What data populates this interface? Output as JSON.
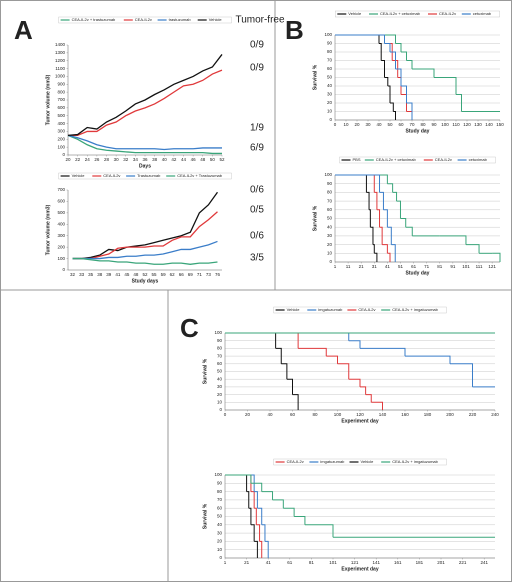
{
  "chart_data": [
    {
      "type": "line",
      "panel": "A",
      "ylabel": "Tumor volume (mm3)",
      "xlabel": "Days",
      "x": [
        20,
        22,
        24,
        26,
        28,
        30,
        32,
        34,
        36,
        38,
        40,
        42,
        44,
        46,
        48,
        50,
        52
      ],
      "xlim": [
        20,
        52
      ],
      "xticks": [
        20,
        22,
        24,
        26,
        28,
        30,
        32,
        34,
        36,
        38,
        40,
        42,
        44,
        46,
        48,
        50,
        52
      ],
      "ylim": [
        0,
        1400
      ],
      "yticks": [
        0,
        100,
        200,
        300,
        400,
        500,
        600,
        700,
        800,
        900,
        1000,
        1100,
        1200,
        1300,
        1400
      ],
      "grid": false,
      "series": [
        {
          "name": "CEA-IL2v + trastuzumab",
          "color": "#3aa57a",
          "values": [
            250,
            200,
            130,
            80,
            60,
            50,
            40,
            30,
            30,
            30,
            30,
            30,
            30,
            30,
            30,
            20,
            20
          ]
        },
        {
          "name": "CEA-IL2v",
          "color": "#e0393b",
          "values": [
            250,
            250,
            300,
            300,
            380,
            420,
            500,
            560,
            600,
            650,
            720,
            800,
            880,
            900,
            950,
            1030,
            1080
          ]
        },
        {
          "name": "trastuzumab",
          "color": "#3a7dc9",
          "values": [
            250,
            220,
            180,
            130,
            100,
            80,
            80,
            80,
            80,
            80,
            70,
            80,
            80,
            80,
            90,
            90,
            90
          ]
        },
        {
          "name": "Vehicle",
          "color": "#111111",
          "values": [
            250,
            260,
            350,
            330,
            420,
            480,
            560,
            650,
            700,
            770,
            830,
            900,
            950,
            1000,
            1070,
            1120,
            1280
          ]
        }
      ],
      "annotation_title": "Tumor-free",
      "annotations": [
        "0/9",
        "0/9",
        "1/9",
        "6/9"
      ]
    },
    {
      "type": "line",
      "ylabel": "Tumor volume (mm3)",
      "xlabel": "Study days",
      "categories": [
        "32",
        "33",
        "35",
        "38",
        "39",
        "41",
        "45",
        "48",
        "52",
        "55",
        "59",
        "62",
        "66",
        "69",
        "71",
        "73",
        "76"
      ],
      "ylim": [
        0,
        700
      ],
      "yticks": [
        0,
        100,
        200,
        300,
        400,
        500,
        600,
        700
      ],
      "grid": false,
      "series": [
        {
          "name": "Vehicle",
          "color": "#111111",
          "values": [
            100,
            100,
            110,
            130,
            180,
            170,
            200,
            210,
            220,
            240,
            260,
            280,
            300,
            330,
            500,
            570,
            680
          ]
        },
        {
          "name": "CEA-IL2v",
          "color": "#e0393b",
          "values": [
            100,
            100,
            100,
            120,
            140,
            190,
            200,
            200,
            200,
            210,
            210,
            260,
            290,
            290,
            380,
            440,
            510
          ]
        },
        {
          "name": "Trastuzumab",
          "color": "#3a7dc9",
          "values": [
            100,
            100,
            100,
            100,
            110,
            110,
            120,
            120,
            130,
            130,
            140,
            160,
            180,
            180,
            200,
            220,
            250
          ]
        },
        {
          "name": "CEA-IL2v + Trastuzumab",
          "color": "#3aa57a",
          "values": [
            100,
            100,
            90,
            80,
            80,
            70,
            70,
            60,
            60,
            50,
            50,
            60,
            60,
            50,
            60,
            60,
            70
          ]
        }
      ],
      "annotations": [
        "0/6",
        "0/5",
        "0/6",
        "3/5"
      ]
    },
    {
      "type": "step",
      "panel": "B",
      "ylabel": "Survival %",
      "xlabel": "Study  day",
      "xlim": [
        0,
        150
      ],
      "xticks": [
        0,
        10,
        20,
        30,
        40,
        50,
        60,
        70,
        80,
        90,
        100,
        110,
        120,
        130,
        140,
        150
      ],
      "ylim": [
        0,
        100
      ],
      "yticks": [
        0,
        10,
        20,
        30,
        40,
        50,
        60,
        70,
        80,
        90,
        100
      ],
      "grid": true,
      "series": [
        {
          "name": "Vehicle",
          "color": "#111111",
          "x": [
            0,
            40,
            42,
            45,
            48,
            50,
            53,
            55
          ],
          "values": [
            100,
            90,
            70,
            50,
            40,
            20,
            10,
            0
          ]
        },
        {
          "name": "CEA-IL2v + cetuximab",
          "color": "#3aa57a",
          "x": [
            0,
            55,
            60,
            65,
            70,
            85,
            90,
            110,
            115,
            150
          ],
          "values": [
            100,
            90,
            80,
            70,
            60,
            60,
            50,
            30,
            10,
            10
          ]
        },
        {
          "name": "CEA-IL2v",
          "color": "#e0393b",
          "x": [
            0,
            45,
            52,
            57,
            60,
            65,
            70
          ],
          "values": [
            100,
            90,
            70,
            50,
            30,
            10,
            0
          ]
        },
        {
          "name": "cetuximab",
          "color": "#3a7dc9",
          "x": [
            0,
            45,
            50,
            55,
            60,
            65,
            70
          ],
          "values": [
            100,
            90,
            80,
            60,
            40,
            20,
            0
          ]
        }
      ]
    },
    {
      "type": "step",
      "ylabel": "Survival %",
      "xlabel": "Study day",
      "xlim": [
        1,
        127
      ],
      "xticks": [
        1,
        11,
        21,
        31,
        41,
        51,
        61,
        71,
        81,
        91,
        101,
        111,
        121
      ],
      "ylim": [
        0,
        100
      ],
      "yticks": [
        0,
        10,
        20,
        30,
        40,
        50,
        60,
        70,
        80,
        90,
        100
      ],
      "grid": true,
      "series": [
        {
          "name": "PBS",
          "color": "#111111",
          "x": [
            1,
            25,
            27,
            28,
            30,
            31,
            33
          ],
          "values": [
            100,
            80,
            60,
            40,
            20,
            10,
            0
          ]
        },
        {
          "name": "CEA-IL2v + cetuximab",
          "color": "#3aa57a",
          "x": [
            1,
            41,
            45,
            48,
            51,
            55,
            60,
            81,
            101,
            111,
            121,
            127
          ],
          "values": [
            100,
            90,
            80,
            70,
            50,
            40,
            30,
            30,
            20,
            10,
            10,
            0
          ]
        },
        {
          "name": "CEA-IL2v",
          "color": "#e0393b",
          "x": [
            1,
            31,
            33,
            35,
            37,
            41,
            43
          ],
          "values": [
            100,
            80,
            60,
            40,
            20,
            10,
            0
          ]
        },
        {
          "name": "cetuximab",
          "color": "#3a7dc9",
          "x": [
            1,
            35,
            38,
            41,
            44,
            47
          ],
          "values": [
            100,
            80,
            60,
            40,
            20,
            0
          ]
        }
      ]
    },
    {
      "type": "step",
      "panel": "C",
      "ylabel": "Survival %",
      "xlabel": "Experiment day",
      "xlim": [
        0,
        240
      ],
      "xticks": [
        0,
        20,
        40,
        60,
        80,
        100,
        120,
        140,
        160,
        180,
        200,
        220,
        240
      ],
      "ylim": [
        0,
        100
      ],
      "yticks": [
        0,
        10,
        20,
        30,
        40,
        50,
        60,
        70,
        80,
        90,
        100
      ],
      "grid": true,
      "series": [
        {
          "name": "Vehicle",
          "color": "#111111",
          "x": [
            0,
            45,
            50,
            55,
            60,
            65
          ],
          "values": [
            100,
            80,
            60,
            40,
            20,
            0
          ]
        },
        {
          "name": "imgatuzumab",
          "color": "#3a7dc9",
          "x": [
            0,
            110,
            120,
            160,
            200,
            220,
            240
          ],
          "values": [
            100,
            90,
            80,
            70,
            60,
            30,
            30
          ]
        },
        {
          "name": "CEA-IL2v",
          "color": "#e0393b",
          "x": [
            0,
            65,
            90,
            100,
            110,
            120,
            125,
            130,
            140
          ],
          "values": [
            100,
            80,
            70,
            60,
            40,
            30,
            20,
            10,
            0
          ]
        },
        {
          "name": "CEA-IL2v + imgatuzumab",
          "color": "#3aa57a",
          "x": [
            0,
            240
          ],
          "values": [
            100,
            100
          ]
        }
      ]
    },
    {
      "type": "step",
      "ylabel": "Survival %",
      "xlabel": "Experiment day",
      "xlim": [
        1,
        251
      ],
      "xticks": [
        1,
        21,
        41,
        61,
        81,
        101,
        121,
        141,
        161,
        181,
        201,
        221,
        241
      ],
      "ylim": [
        0,
        100
      ],
      "yticks": [
        0,
        10,
        20,
        30,
        40,
        50,
        60,
        70,
        80,
        90,
        100
      ],
      "grid": true,
      "series": [
        {
          "name": "CEA-IL2v",
          "color": "#e0393b",
          "x": [
            1,
            25,
            28,
            30,
            33,
            35
          ],
          "values": [
            100,
            80,
            60,
            40,
            20,
            0
          ]
        },
        {
          "name": "imgatuzumab",
          "color": "#3a7dc9",
          "x": [
            1,
            28,
            31,
            35,
            38,
            41
          ],
          "values": [
            100,
            80,
            60,
            40,
            20,
            0
          ]
        },
        {
          "name": "Vehicle",
          "color": "#111111",
          "x": [
            1,
            21,
            23,
            25,
            28,
            31
          ],
          "values": [
            100,
            80,
            60,
            40,
            20,
            0
          ]
        },
        {
          "name": "CEA-IL2v + imgatuzumab",
          "color": "#3aa57a",
          "x": [
            1,
            25,
            35,
            45,
            55,
            65,
            75,
            101,
            251
          ],
          "values": [
            100,
            90,
            80,
            70,
            60,
            50,
            40,
            25,
            25
          ]
        }
      ]
    }
  ]
}
